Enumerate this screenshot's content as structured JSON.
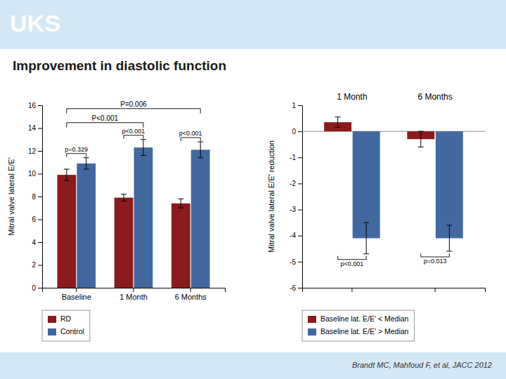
{
  "title": "Improvement in diastolic function",
  "subtitle": "Brandt MC, Mahfoud F, et al, JACC 2012",
  "annotations": [
    {
      "text": "UKS"
    }
  ],
  "chart_data": [
    {
      "type": "bar",
      "categories": [
        "Baseline",
        "1 Month",
        "6 Months"
      ],
      "series": [
        {
          "name": "RD",
          "color": "#8b1a1a",
          "values": [
            9.9,
            7.9,
            7.4
          ],
          "errors": [
            0.5,
            0.3,
            0.4
          ]
        },
        {
          "name": "Control",
          "color": "#4169a0",
          "values": [
            10.9,
            12.3,
            12.1
          ],
          "errors": [
            0.5,
            0.7,
            0.7
          ]
        }
      ],
      "y_label": "Mitral valve lateral E/E'",
      "ylim": [
        0,
        16
      ],
      "yticks": [
        0,
        2,
        4,
        6,
        8,
        10,
        12,
        14,
        16
      ],
      "annotations": [
        {
          "text": "p=0.329",
          "from": "Baseline",
          "to": "Baseline"
        },
        {
          "text": "p<0.001",
          "from": "1 Month",
          "to": "1 Month"
        },
        {
          "text": "p<0.001",
          "from": "6 Months",
          "to": "6 Months"
        },
        {
          "text": "P<0.001",
          "from": "Baseline",
          "to": "1 Month"
        },
        {
          "text": "P=0.006",
          "from": "Baseline",
          "to": "6 Months"
        }
      ],
      "grid": false,
      "legend": "bottom"
    },
    {
      "type": "bar",
      "categories": [
        "1 Month",
        "6 Months"
      ],
      "series": [
        {
          "name": "Baseline lat. E/E' < Median",
          "color": "#8b1a1a",
          "values": [
            0.35,
            -0.3
          ],
          "errors": [
            0.2,
            0.3
          ]
        },
        {
          "name": "Baseline lat. E/E' > Median",
          "color": "#4169a0",
          "values": [
            -4.1,
            -4.1
          ],
          "errors": [
            0.6,
            0.5
          ]
        }
      ],
      "y_label": "Mitral valve lateral E/E' reduction",
      "ylim": [
        -6,
        1
      ],
      "yticks": [
        -6,
        -5,
        -4,
        -3,
        -2,
        -1,
        0,
        1
      ],
      "annotations": [
        {
          "text": "p<0.001",
          "from": "1 Month",
          "to": "1 Month"
        },
        {
          "text": "p=0.013",
          "from": "6 Months",
          "to": "6 Months"
        }
      ],
      "grid": false,
      "tick_labels": "y",
      "legend": "bottom"
    }
  ]
}
